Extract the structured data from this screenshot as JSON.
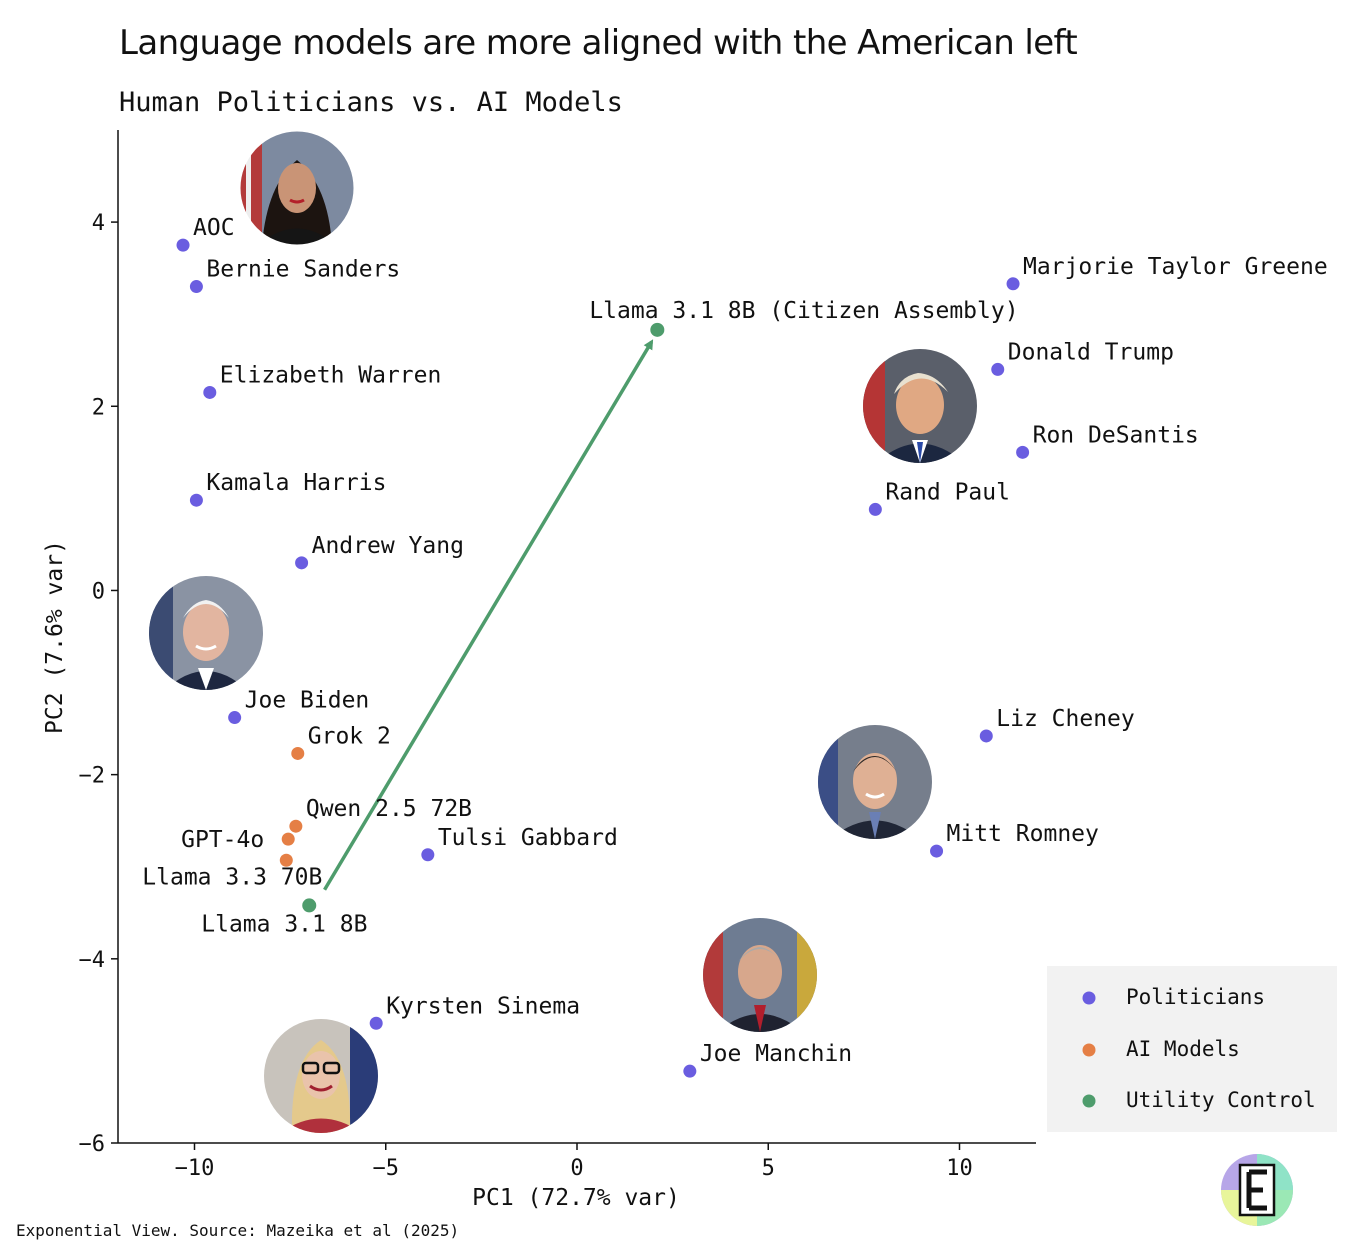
{
  "header": {
    "title": "Language models are more aligned with the American left",
    "subtitle": "Human Politicians vs. AI Models"
  },
  "footer": {
    "source": "Exponential View. Source: Mazeika et al (2025)"
  },
  "colors": {
    "Politicians": "#6a5de0",
    "AI Models": "#e57f45",
    "Utility Control": "#4e9c6c",
    "arrow": "#4e9c6c",
    "legend_bg": "#f2f2f2"
  },
  "chart_data": {
    "type": "scatter",
    "title": "Human Politicians vs. AI Models",
    "xlabel": "PC1 (72.7% var)",
    "ylabel": "PC2 (7.6% var)",
    "xlim": [
      -12,
      12
    ],
    "ylim": [
      -6,
      5
    ],
    "xticks": [
      -10,
      -5,
      0,
      5,
      10
    ],
    "yticks": [
      -6,
      -4,
      -2,
      0,
      2,
      4
    ],
    "grid": false,
    "legend_position": "bottom-right",
    "legend": [
      "Politicians",
      "AI Models",
      "Utility Control"
    ],
    "points": [
      {
        "label": "AOC",
        "group": "Politicians",
        "x": -10.3,
        "y": 3.75
      },
      {
        "label": "Bernie Sanders",
        "group": "Politicians",
        "x": -9.95,
        "y": 3.3
      },
      {
        "label": "Elizabeth Warren",
        "group": "Politicians",
        "x": -9.6,
        "y": 2.15
      },
      {
        "label": "Kamala Harris",
        "group": "Politicians",
        "x": -9.95,
        "y": 0.98
      },
      {
        "label": "Andrew Yang",
        "group": "Politicians",
        "x": -7.2,
        "y": 0.3
      },
      {
        "label": "Joe Biden",
        "group": "Politicians",
        "x": -8.95,
        "y": -1.38
      },
      {
        "label": "Tulsi Gabbard",
        "group": "Politicians",
        "x": -3.9,
        "y": -2.87
      },
      {
        "label": "Kyrsten Sinema",
        "group": "Politicians",
        "x": -5.25,
        "y": -4.7
      },
      {
        "label": "Joe Manchin",
        "group": "Politicians",
        "x": 2.95,
        "y": -5.22
      },
      {
        "label": "Marjorie Taylor Greene",
        "group": "Politicians",
        "x": 11.4,
        "y": 3.33
      },
      {
        "label": "Donald Trump",
        "group": "Politicians",
        "x": 11.0,
        "y": 2.4
      },
      {
        "label": "Ron DeSantis",
        "group": "Politicians",
        "x": 11.65,
        "y": 1.5
      },
      {
        "label": "Rand Paul",
        "group": "Politicians",
        "x": 7.8,
        "y": 0.88
      },
      {
        "label": "Liz Cheney",
        "group": "Politicians",
        "x": 10.7,
        "y": -1.58
      },
      {
        "label": "Mitt Romney",
        "group": "Politicians",
        "x": 9.4,
        "y": -2.83
      },
      {
        "label": "Grok 2",
        "group": "AI Models",
        "x": -7.3,
        "y": -1.77
      },
      {
        "label": "Qwen 2.5 72B",
        "group": "AI Models",
        "x": -7.35,
        "y": -2.56
      },
      {
        "label": "GPT-4o",
        "group": "AI Models",
        "x": -7.55,
        "y": -2.7
      },
      {
        "label": "Llama 3.3 70B",
        "group": "AI Models",
        "x": -7.6,
        "y": -2.93
      },
      {
        "label": "Llama 3.1 8B",
        "group": "Utility Control",
        "x": -7.0,
        "y": -3.42
      },
      {
        "label": "Llama 3.1 8B (Citizen Assembly)",
        "group": "Utility Control",
        "x": 2.1,
        "y": 2.83
      }
    ],
    "arrow": {
      "from": [
        -6.6,
        -3.25
      ],
      "to": [
        1.95,
        2.7
      ]
    },
    "annotated_portraits": [
      "AOC",
      "Joe Biden",
      "Kyrsten Sinema",
      "Joe Manchin",
      "Donald Trump",
      "Mitt Romney"
    ]
  }
}
